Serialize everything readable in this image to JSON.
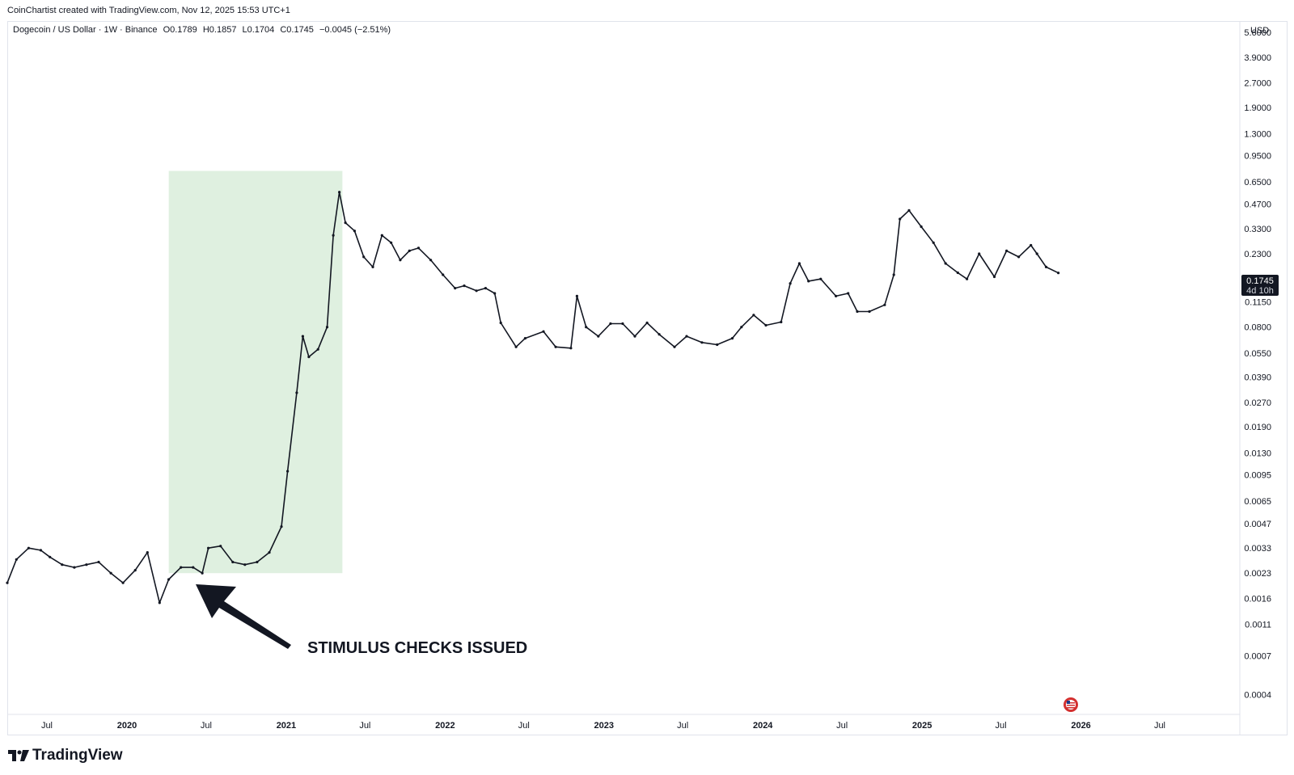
{
  "header": {
    "credit": "CoinChartist created with TradingView.com, Nov 12, 2025 15:53 UTC+1"
  },
  "legend": {
    "symbol": "Dogecoin / US Dollar · 1W · Binance",
    "open": "O0.1789",
    "high": "H0.1857",
    "low": "L0.1704",
    "close": "C0.1745",
    "change": "−0.0045 (−2.51%)"
  },
  "price_axis": {
    "unit": "USD",
    "last_price": "0.1745",
    "countdown": "4d 10h"
  },
  "annotation": {
    "text": "STIMULUS CHECKS ISSUED",
    "highlight_color": "#dff0e0"
  },
  "footer": {
    "brand": "TradingView",
    "icon": "flag-event-icon"
  },
  "chart_data": {
    "type": "line",
    "title": "Dogecoin / US Dollar · 1W · Binance",
    "scale": "log",
    "y_ticks": [
      "0.0004",
      "0.0007",
      "0.0011",
      "0.0016",
      "0.0023",
      "0.0033",
      "0.0047",
      "0.0065",
      "0.0095",
      "0.0130",
      "0.0190",
      "0.0270",
      "0.0390",
      "0.0550",
      "0.0800",
      "0.1150",
      "0.1600",
      "0.2300",
      "0.3300",
      "0.4700",
      "0.6500",
      "0.9500",
      "1.3000",
      "1.9000",
      "2.7000",
      "3.9000",
      "5.6000"
    ],
    "x_ticks": [
      "Jul",
      "2020",
      "Jul",
      "2021",
      "Jul",
      "2022",
      "Jul",
      "2023",
      "Jul",
      "2024",
      "Jul",
      "2025",
      "Jul",
      "2026",
      "Jul"
    ],
    "x_tick_dates": [
      "2019-07-01",
      "2020-01-01",
      "2020-07-01",
      "2021-01-01",
      "2021-07-01",
      "2022-01-01",
      "2022-07-01",
      "2023-01-01",
      "2023-07-01",
      "2024-01-01",
      "2024-07-01",
      "2025-01-01",
      "2025-07-01",
      "2026-01-01",
      "2026-07-01"
    ],
    "xlim": [
      "2019-04-01",
      "2027-01-01"
    ],
    "ylim": [
      0.0003,
      6.6
    ],
    "grid": false,
    "highlight_range": [
      "2020-04-06",
      "2021-05-10"
    ],
    "highlight_price_range": [
      0.0023,
      0.76
    ],
    "series": [
      {
        "color": "#131722",
        "points": [
          [
            "2019-04-01",
            0.002
          ],
          [
            "2019-04-22",
            0.0028
          ],
          [
            "2019-05-20",
            0.0033
          ],
          [
            "2019-06-17",
            0.0032
          ],
          [
            "2019-07-08",
            0.0029
          ],
          [
            "2019-08-05",
            0.0026
          ],
          [
            "2019-09-02",
            0.0025
          ],
          [
            "2019-09-30",
            0.0026
          ],
          [
            "2019-10-28",
            0.0027
          ],
          [
            "2019-11-25",
            0.0023
          ],
          [
            "2019-12-23",
            0.002
          ],
          [
            "2020-01-20",
            0.0024
          ],
          [
            "2020-02-17",
            0.0031
          ],
          [
            "2020-03-16",
            0.0015
          ],
          [
            "2020-04-06",
            0.0021
          ],
          [
            "2020-05-04",
            0.0025
          ],
          [
            "2020-06-01",
            0.0025
          ],
          [
            "2020-06-22",
            0.0023
          ],
          [
            "2020-07-06",
            0.0033
          ],
          [
            "2020-08-03",
            0.0034
          ],
          [
            "2020-08-31",
            0.0027
          ],
          [
            "2020-09-28",
            0.0026
          ],
          [
            "2020-10-26",
            0.0027
          ],
          [
            "2020-11-23",
            0.0031
          ],
          [
            "2020-12-21",
            0.0045
          ],
          [
            "2021-01-04",
            0.01
          ],
          [
            "2021-01-25",
            0.031
          ],
          [
            "2021-02-08",
            0.07
          ],
          [
            "2021-02-22",
            0.052
          ],
          [
            "2021-03-15",
            0.058
          ],
          [
            "2021-04-05",
            0.08
          ],
          [
            "2021-04-19",
            0.3
          ],
          [
            "2021-05-03",
            0.56
          ],
          [
            "2021-05-17",
            0.36
          ],
          [
            "2021-06-07",
            0.32
          ],
          [
            "2021-06-28",
            0.22
          ],
          [
            "2021-07-19",
            0.19
          ],
          [
            "2021-08-09",
            0.3
          ],
          [
            "2021-08-30",
            0.27
          ],
          [
            "2021-09-20",
            0.21
          ],
          [
            "2021-10-11",
            0.24
          ],
          [
            "2021-11-01",
            0.25
          ],
          [
            "2021-11-29",
            0.21
          ],
          [
            "2021-12-27",
            0.17
          ],
          [
            "2022-01-24",
            0.14
          ],
          [
            "2022-02-14",
            0.145
          ],
          [
            "2022-03-14",
            0.135
          ],
          [
            "2022-04-04",
            0.14
          ],
          [
            "2022-04-25",
            0.13
          ],
          [
            "2022-05-09",
            0.085
          ],
          [
            "2022-06-13",
            0.06
          ],
          [
            "2022-07-04",
            0.068
          ],
          [
            "2022-08-15",
            0.075
          ],
          [
            "2022-09-12",
            0.06
          ],
          [
            "2022-10-17",
            0.059
          ],
          [
            "2022-10-31",
            0.125
          ],
          [
            "2022-11-21",
            0.08
          ],
          [
            "2022-12-19",
            0.07
          ],
          [
            "2023-01-16",
            0.084
          ],
          [
            "2023-02-13",
            0.084
          ],
          [
            "2023-03-13",
            0.07
          ],
          [
            "2023-04-10",
            0.085
          ],
          [
            "2023-05-08",
            0.072
          ],
          [
            "2023-06-12",
            0.06
          ],
          [
            "2023-07-10",
            0.07
          ],
          [
            "2023-08-14",
            0.064
          ],
          [
            "2023-09-18",
            0.062
          ],
          [
            "2023-10-23",
            0.068
          ],
          [
            "2023-11-13",
            0.08
          ],
          [
            "2023-12-11",
            0.095
          ],
          [
            "2024-01-08",
            0.082
          ],
          [
            "2024-02-12",
            0.086
          ],
          [
            "2024-03-04",
            0.15
          ],
          [
            "2024-03-25",
            0.2
          ],
          [
            "2024-04-15",
            0.155
          ],
          [
            "2024-05-13",
            0.16
          ],
          [
            "2024-06-17",
            0.125
          ],
          [
            "2024-07-15",
            0.13
          ],
          [
            "2024-08-05",
            0.1
          ],
          [
            "2024-09-02",
            0.1
          ],
          [
            "2024-10-07",
            0.11
          ],
          [
            "2024-10-28",
            0.17
          ],
          [
            "2024-11-11",
            0.38
          ],
          [
            "2024-12-02",
            0.43
          ],
          [
            "2024-12-30",
            0.34
          ],
          [
            "2025-01-27",
            0.27
          ],
          [
            "2025-02-24",
            0.2
          ],
          [
            "2025-03-24",
            0.175
          ],
          [
            "2025-04-14",
            0.16
          ],
          [
            "2025-05-12",
            0.23
          ],
          [
            "2025-06-16",
            0.165
          ],
          [
            "2025-07-14",
            0.24
          ],
          [
            "2025-08-11",
            0.22
          ],
          [
            "2025-09-08",
            0.26
          ],
          [
            "2025-09-22",
            0.23
          ],
          [
            "2025-10-13",
            0.19
          ],
          [
            "2025-11-10",
            0.1745
          ]
        ]
      }
    ]
  }
}
